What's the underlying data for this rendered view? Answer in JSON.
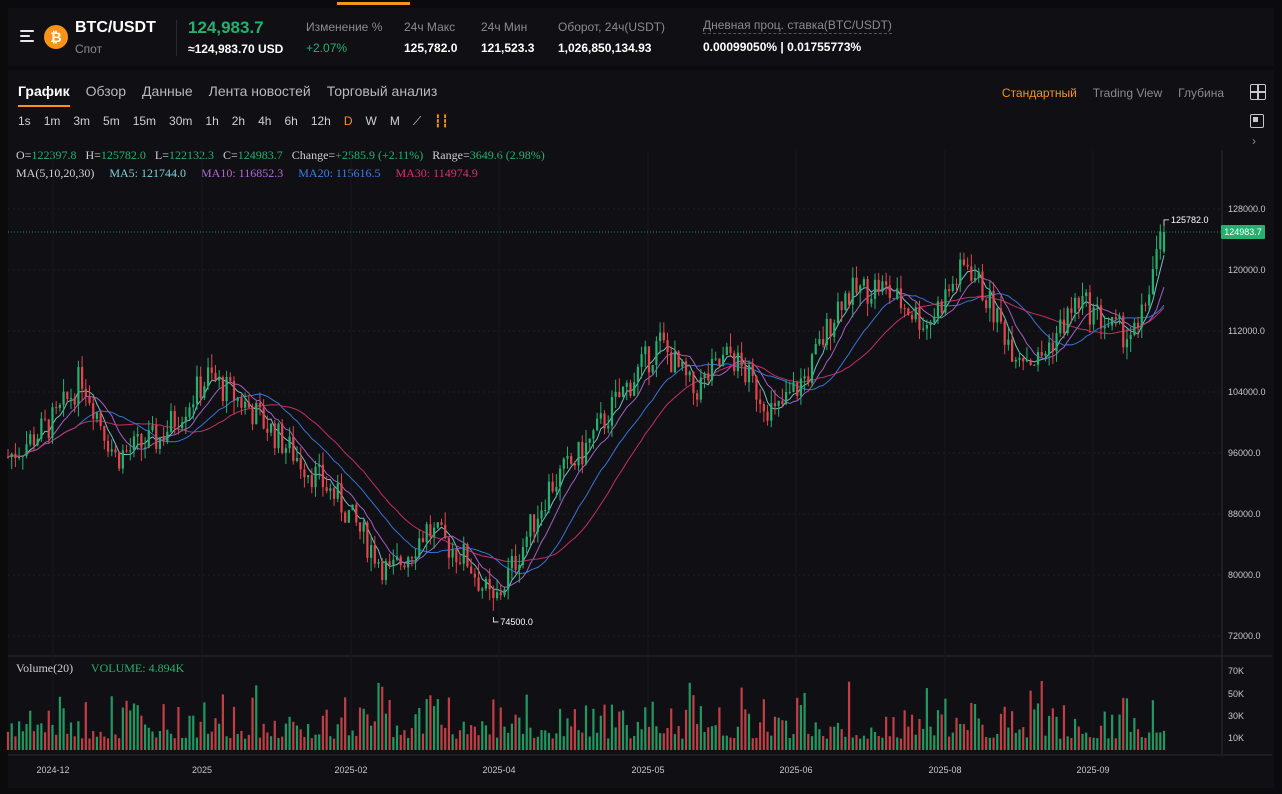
{
  "header": {
    "pair": "BTC/USDT",
    "market_type": "Спот",
    "last_price": "124,983.7",
    "last_price_usd": "≈124,983.70 USD",
    "stats": [
      {
        "label": "Изменение %",
        "value": "+2.07%",
        "positive": true
      },
      {
        "label": "24ч Макс",
        "value": "125,782.0"
      },
      {
        "label": "24ч Мин",
        "value": "121,523.3"
      },
      {
        "label": "Оборот, 24ч(USDT)",
        "value": "1,026,850,134.93"
      },
      {
        "label": "Дневная проц. ставка(BTC/USDT)",
        "value": "0.00099050% | 0.01755773%"
      }
    ]
  },
  "tabs": [
    "График",
    "Обзор",
    "Данные",
    "Лента новостей",
    "Торговый анализ"
  ],
  "views": [
    "Стандартный",
    "Trading View",
    "Глубина"
  ],
  "intervals": [
    "1s",
    "1m",
    "3m",
    "5m",
    "15m",
    "30m",
    "1h",
    "2h",
    "4h",
    "6h",
    "12h",
    "D",
    "W",
    "M"
  ],
  "active_interval": "D",
  "ohlc": {
    "o_label": "O=",
    "o": "122397.8",
    "h_label": "H=",
    "h": "125782.0",
    "l_label": "L=",
    "l": "122132.3",
    "c_label": "C=",
    "c": "124983.7",
    "change_label": "Change=",
    "change": "+2585.9 (+2.11%)",
    "range_label": "Range=",
    "range": "3649.6 (2.98%)"
  },
  "ma": {
    "label": "MA(5,10,20,30)",
    "items": [
      {
        "text": "MA5: 121744.0",
        "color": "#7fd1d8"
      },
      {
        "text": "MA10: 116852.3",
        "color": "#b069d9"
      },
      {
        "text": "MA20: 115616.5",
        "color": "#3d7ee8"
      },
      {
        "text": "MA30: 114974.9",
        "color": "#d8326b"
      }
    ]
  },
  "volume": {
    "label": "Volume(20)",
    "value_text": "VOLUME: 4.894K"
  },
  "colors": {
    "up": "#26b06f",
    "down": "#e0474c",
    "accent": "#f7931a"
  },
  "chart_data": {
    "type": "candlestick",
    "y_ticks": [
      "128000.0",
      "120000.0",
      "112000.0",
      "104000.0",
      "96000.0",
      "88000.0",
      "80000.0",
      "72000.0"
    ],
    "y_range": [
      70000,
      130000
    ],
    "volume_ticks": [
      "70K",
      "50K",
      "30K",
      "10K"
    ],
    "x_labels": [
      "2024-12",
      "2025",
      "2025-02",
      "2025-04",
      "2025-05",
      "2025-06",
      "2025-08",
      "2025-09"
    ],
    "last_price_tag": "124983.7",
    "high_annotation": "125782.0",
    "low_annotation": "74500.0",
    "close_path": [
      [
        "2024-11-27",
        95500
      ],
      [
        "2024-12-05",
        98500
      ],
      [
        "2024-12-10",
        100500
      ],
      [
        "2024-12-17",
        106000
      ],
      [
        "2024-12-26",
        95500
      ],
      [
        "2025-01-07",
        98000
      ],
      [
        "2025-01-20",
        106000
      ],
      [
        "2025-01-31",
        102000
      ],
      [
        "2025-02-10",
        97000
      ],
      [
        "2025-02-24",
        90000
      ],
      [
        "2025-03-10",
        80000
      ],
      [
        "2025-03-20",
        86000
      ],
      [
        "2025-03-31",
        82000
      ],
      [
        "2025-04-07",
        76000
      ],
      [
        "2025-04-15",
        84000
      ],
      [
        "2025-04-22",
        91500
      ],
      [
        "2025-05-01",
        96000
      ],
      [
        "2025-05-12",
        104000
      ],
      [
        "2025-05-22",
        110500
      ],
      [
        "2025-05-31",
        104000
      ],
      [
        "2025-06-10",
        109000
      ],
      [
        "2025-06-22",
        101000
      ],
      [
        "2025-07-01",
        106500
      ],
      [
        "2025-07-10",
        116500
      ],
      [
        "2025-07-20",
        118000
      ],
      [
        "2025-08-02",
        113000
      ],
      [
        "2025-08-13",
        121000
      ],
      [
        "2025-08-25",
        110000
      ],
      [
        "2025-09-01",
        108000
      ],
      [
        "2025-09-12",
        116000
      ],
      [
        "2025-09-22",
        112000
      ],
      [
        "2025-09-28",
        111500
      ],
      [
        "2025-10-02",
        120000
      ],
      [
        "2025-10-05",
        124983.7
      ]
    ]
  }
}
